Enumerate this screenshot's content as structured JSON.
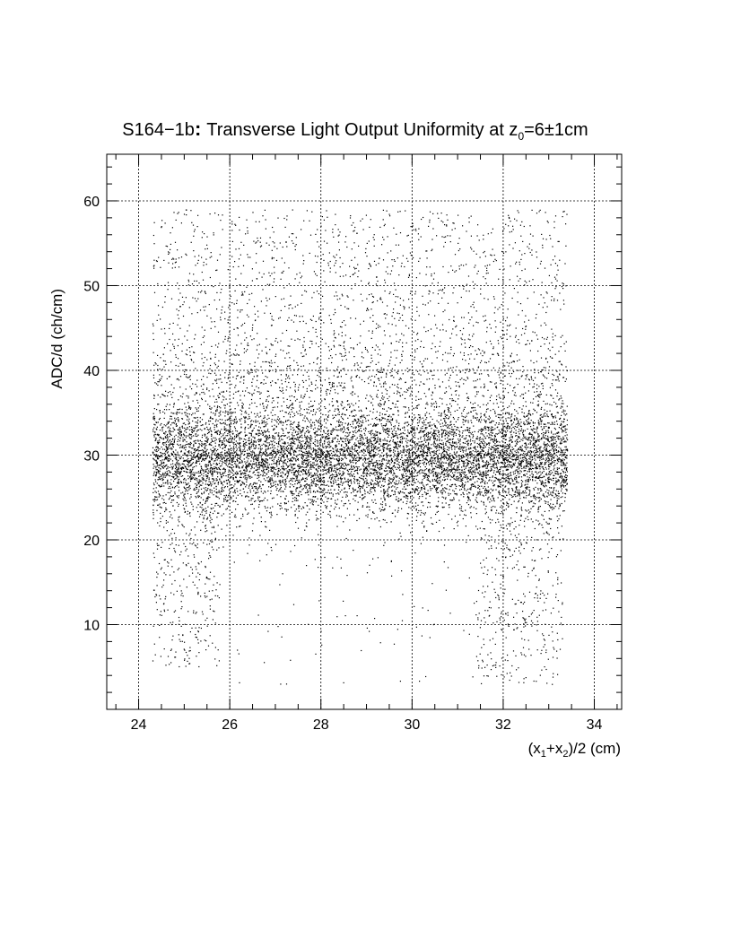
{
  "chart_data": {
    "type": "scatter",
    "title_prefix": "S164−1b",
    "title_main": "Transverse Light Output Uniformity at z",
    "title_sub": "0",
    "title_suffix": "=6±1cm",
    "xlabel_parts": [
      "(x",
      "1",
      "+x",
      "2",
      ")/2 (cm)"
    ],
    "ylabel": "ADC/d (ch/cm)",
    "xlim": [
      23.3,
      34.6
    ],
    "ylim": [
      0,
      65.5
    ],
    "x_ticks": [
      24,
      26,
      28,
      30,
      32,
      34
    ],
    "y_ticks": [
      10,
      20,
      30,
      40,
      50,
      60
    ],
    "grid": true,
    "point_color": "#000000",
    "seed": 164,
    "clusters": [
      {
        "x_range": [
          24.3,
          33.4
        ],
        "y_mean": 29.5,
        "y_sd": 3.0,
        "count": 7200
      },
      {
        "x_range": [
          24.3,
          33.4
        ],
        "y_mean": 33.0,
        "y_sd": 5.5,
        "count": 2600
      },
      {
        "x_range": [
          24.3,
          33.4
        ],
        "y_range": [
          38,
          59
        ],
        "count": 1500
      },
      {
        "x_range": [
          24.3,
          25.8
        ],
        "y_range": [
          5,
          26
        ],
        "count": 320
      },
      {
        "x_range": [
          31.4,
          33.3
        ],
        "y_range": [
          3,
          26
        ],
        "count": 420
      },
      {
        "x_range": [
          26.0,
          31.4
        ],
        "y_range": [
          3,
          24
        ],
        "count": 80
      }
    ]
  }
}
